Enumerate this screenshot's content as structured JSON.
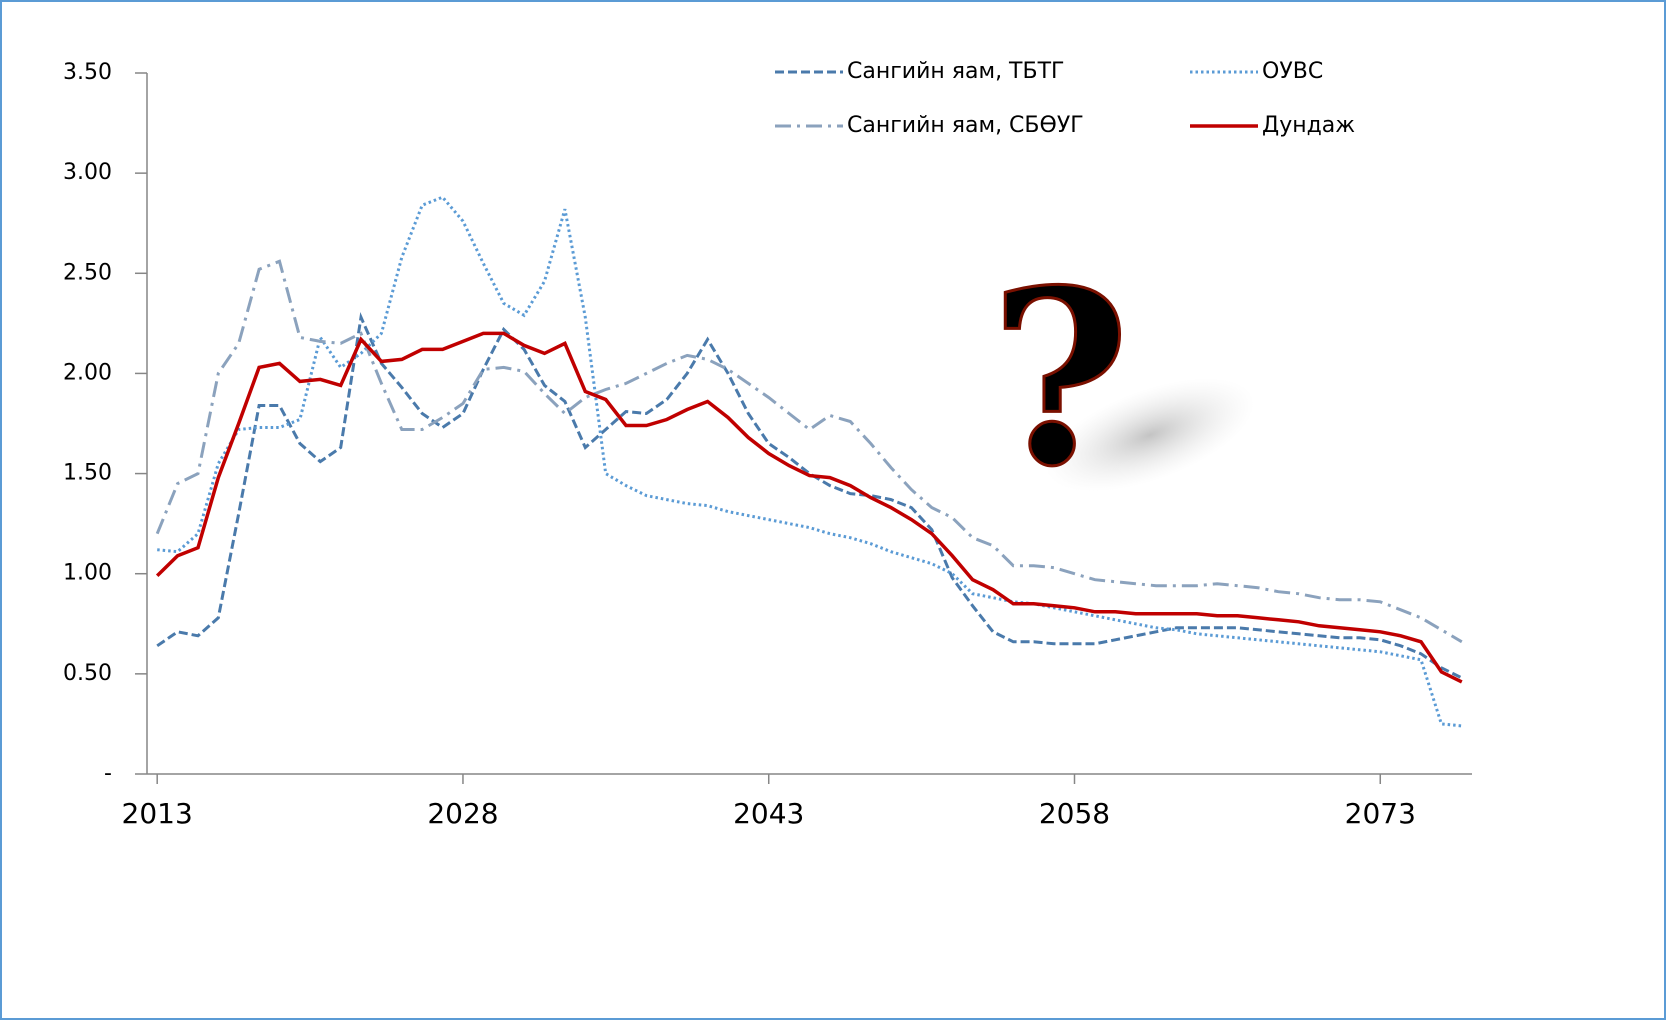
{
  "chart_data": {
    "type": "line",
    "x": [
      2013,
      2014,
      2015,
      2016,
      2017,
      2018,
      2019,
      2020,
      2021,
      2022,
      2023,
      2024,
      2025,
      2026,
      2027,
      2028,
      2029,
      2030,
      2031,
      2032,
      2033,
      2034,
      2035,
      2036,
      2037,
      2038,
      2039,
      2040,
      2041,
      2042,
      2043,
      2044,
      2045,
      2046,
      2047,
      2048,
      2049,
      2050,
      2051,
      2052,
      2053,
      2054,
      2055,
      2056,
      2057,
      2058,
      2059,
      2060,
      2061,
      2062,
      2063,
      2064,
      2065,
      2066,
      2067,
      2068,
      2069,
      2070,
      2071,
      2072,
      2073,
      2074,
      2075,
      2076,
      2077
    ],
    "xlim": [
      2012.5,
      2077.5
    ],
    "xticks": [
      2013,
      2028,
      2043,
      2058,
      2073
    ],
    "ylim": [
      0,
      3.5
    ],
    "yticks": [
      {
        "value": 0,
        "label": "-"
      },
      {
        "value": 0.5,
        "label": "0.50"
      },
      {
        "value": 1,
        "label": "1.00"
      },
      {
        "value": 1.5,
        "label": "1.50"
      },
      {
        "value": 2,
        "label": "2.00"
      },
      {
        "value": 2.5,
        "label": "2.50"
      },
      {
        "value": 3,
        "label": "3.00"
      },
      {
        "value": 3.5,
        "label": "3.50"
      }
    ],
    "series": [
      {
        "name": "Сангийн яам, ТБТГ",
        "color": "#4a7aab",
        "dash": "dashed",
        "values": [
          0.64,
          0.71,
          0.69,
          0.78,
          1.3,
          1.84,
          1.84,
          1.65,
          1.56,
          1.63,
          2.28,
          2.05,
          1.93,
          1.8,
          1.73,
          1.8,
          2.02,
          2.22,
          2.12,
          1.94,
          1.86,
          1.63,
          1.72,
          1.81,
          1.8,
          1.87,
          2.0,
          2.17,
          2.0,
          1.8,
          1.65,
          1.58,
          1.5,
          1.44,
          1.4,
          1.39,
          1.37,
          1.33,
          1.22,
          0.98,
          0.84,
          0.71,
          0.66,
          0.66,
          0.65,
          0.65,
          0.65,
          0.67,
          0.69,
          0.71,
          0.73,
          0.73,
          0.73,
          0.73,
          0.72,
          0.71,
          0.7,
          0.69,
          0.68,
          0.68,
          0.67,
          0.64,
          0.6,
          0.53,
          0.48
        ]
      },
      {
        "name": "ОУВС",
        "color": "#5b9bd5",
        "dash": "dotted",
        "values": [
          1.12,
          1.11,
          1.2,
          1.55,
          1.72,
          1.73,
          1.73,
          1.77,
          2.18,
          2.03,
          2.1,
          2.2,
          2.58,
          2.84,
          2.88,
          2.76,
          2.55,
          2.35,
          2.29,
          2.46,
          2.82,
          2.28,
          1.5,
          1.44,
          1.39,
          1.37,
          1.35,
          1.34,
          1.31,
          1.29,
          1.27,
          1.25,
          1.23,
          1.2,
          1.18,
          1.15,
          1.11,
          1.08,
          1.05,
          1.0,
          0.9,
          0.88,
          0.86,
          0.85,
          0.83,
          0.81,
          0.79,
          0.77,
          0.75,
          0.73,
          0.72,
          0.7,
          0.69,
          0.68,
          0.67,
          0.66,
          0.65,
          0.64,
          0.63,
          0.62,
          0.61,
          0.59,
          0.57,
          0.25,
          0.24
        ]
      },
      {
        "name": "Сангийн яам, СБӨУГ",
        "color": "#8ba2bd",
        "dash": "dashdot",
        "values": [
          1.2,
          1.45,
          1.5,
          2.0,
          2.15,
          2.52,
          2.56,
          2.18,
          2.16,
          2.15,
          2.2,
          1.95,
          1.72,
          1.72,
          1.78,
          1.85,
          2.02,
          2.03,
          2.01,
          1.9,
          1.8,
          1.88,
          1.92,
          1.95,
          2.0,
          2.05,
          2.09,
          2.07,
          2.02,
          1.95,
          1.88,
          1.8,
          1.72,
          1.79,
          1.76,
          1.65,
          1.53,
          1.42,
          1.33,
          1.28,
          1.18,
          1.14,
          1.04,
          1.04,
          1.03,
          1.0,
          0.97,
          0.96,
          0.95,
          0.94,
          0.94,
          0.94,
          0.95,
          0.94,
          0.93,
          0.91,
          0.9,
          0.88,
          0.87,
          0.87,
          0.86,
          0.82,
          0.78,
          0.72,
          0.66
        ]
      },
      {
        "name": "Дундаж",
        "color": "#c00000",
        "dash": "solid",
        "values": [
          0.99,
          1.09,
          1.13,
          1.48,
          1.75,
          2.03,
          2.05,
          1.96,
          1.97,
          1.94,
          2.17,
          2.06,
          2.07,
          2.12,
          2.12,
          2.16,
          2.2,
          2.2,
          2.14,
          2.1,
          2.15,
          1.91,
          1.87,
          1.74,
          1.74,
          1.77,
          1.82,
          1.86,
          1.78,
          1.68,
          1.6,
          1.54,
          1.49,
          1.48,
          1.44,
          1.38,
          1.33,
          1.27,
          1.2,
          1.09,
          0.97,
          0.92,
          0.85,
          0.85,
          0.84,
          0.83,
          0.81,
          0.81,
          0.8,
          0.8,
          0.8,
          0.8,
          0.79,
          0.79,
          0.78,
          0.77,
          0.76,
          0.74,
          0.73,
          0.72,
          0.71,
          0.69,
          0.66,
          0.51,
          0.46
        ]
      }
    ]
  }
}
